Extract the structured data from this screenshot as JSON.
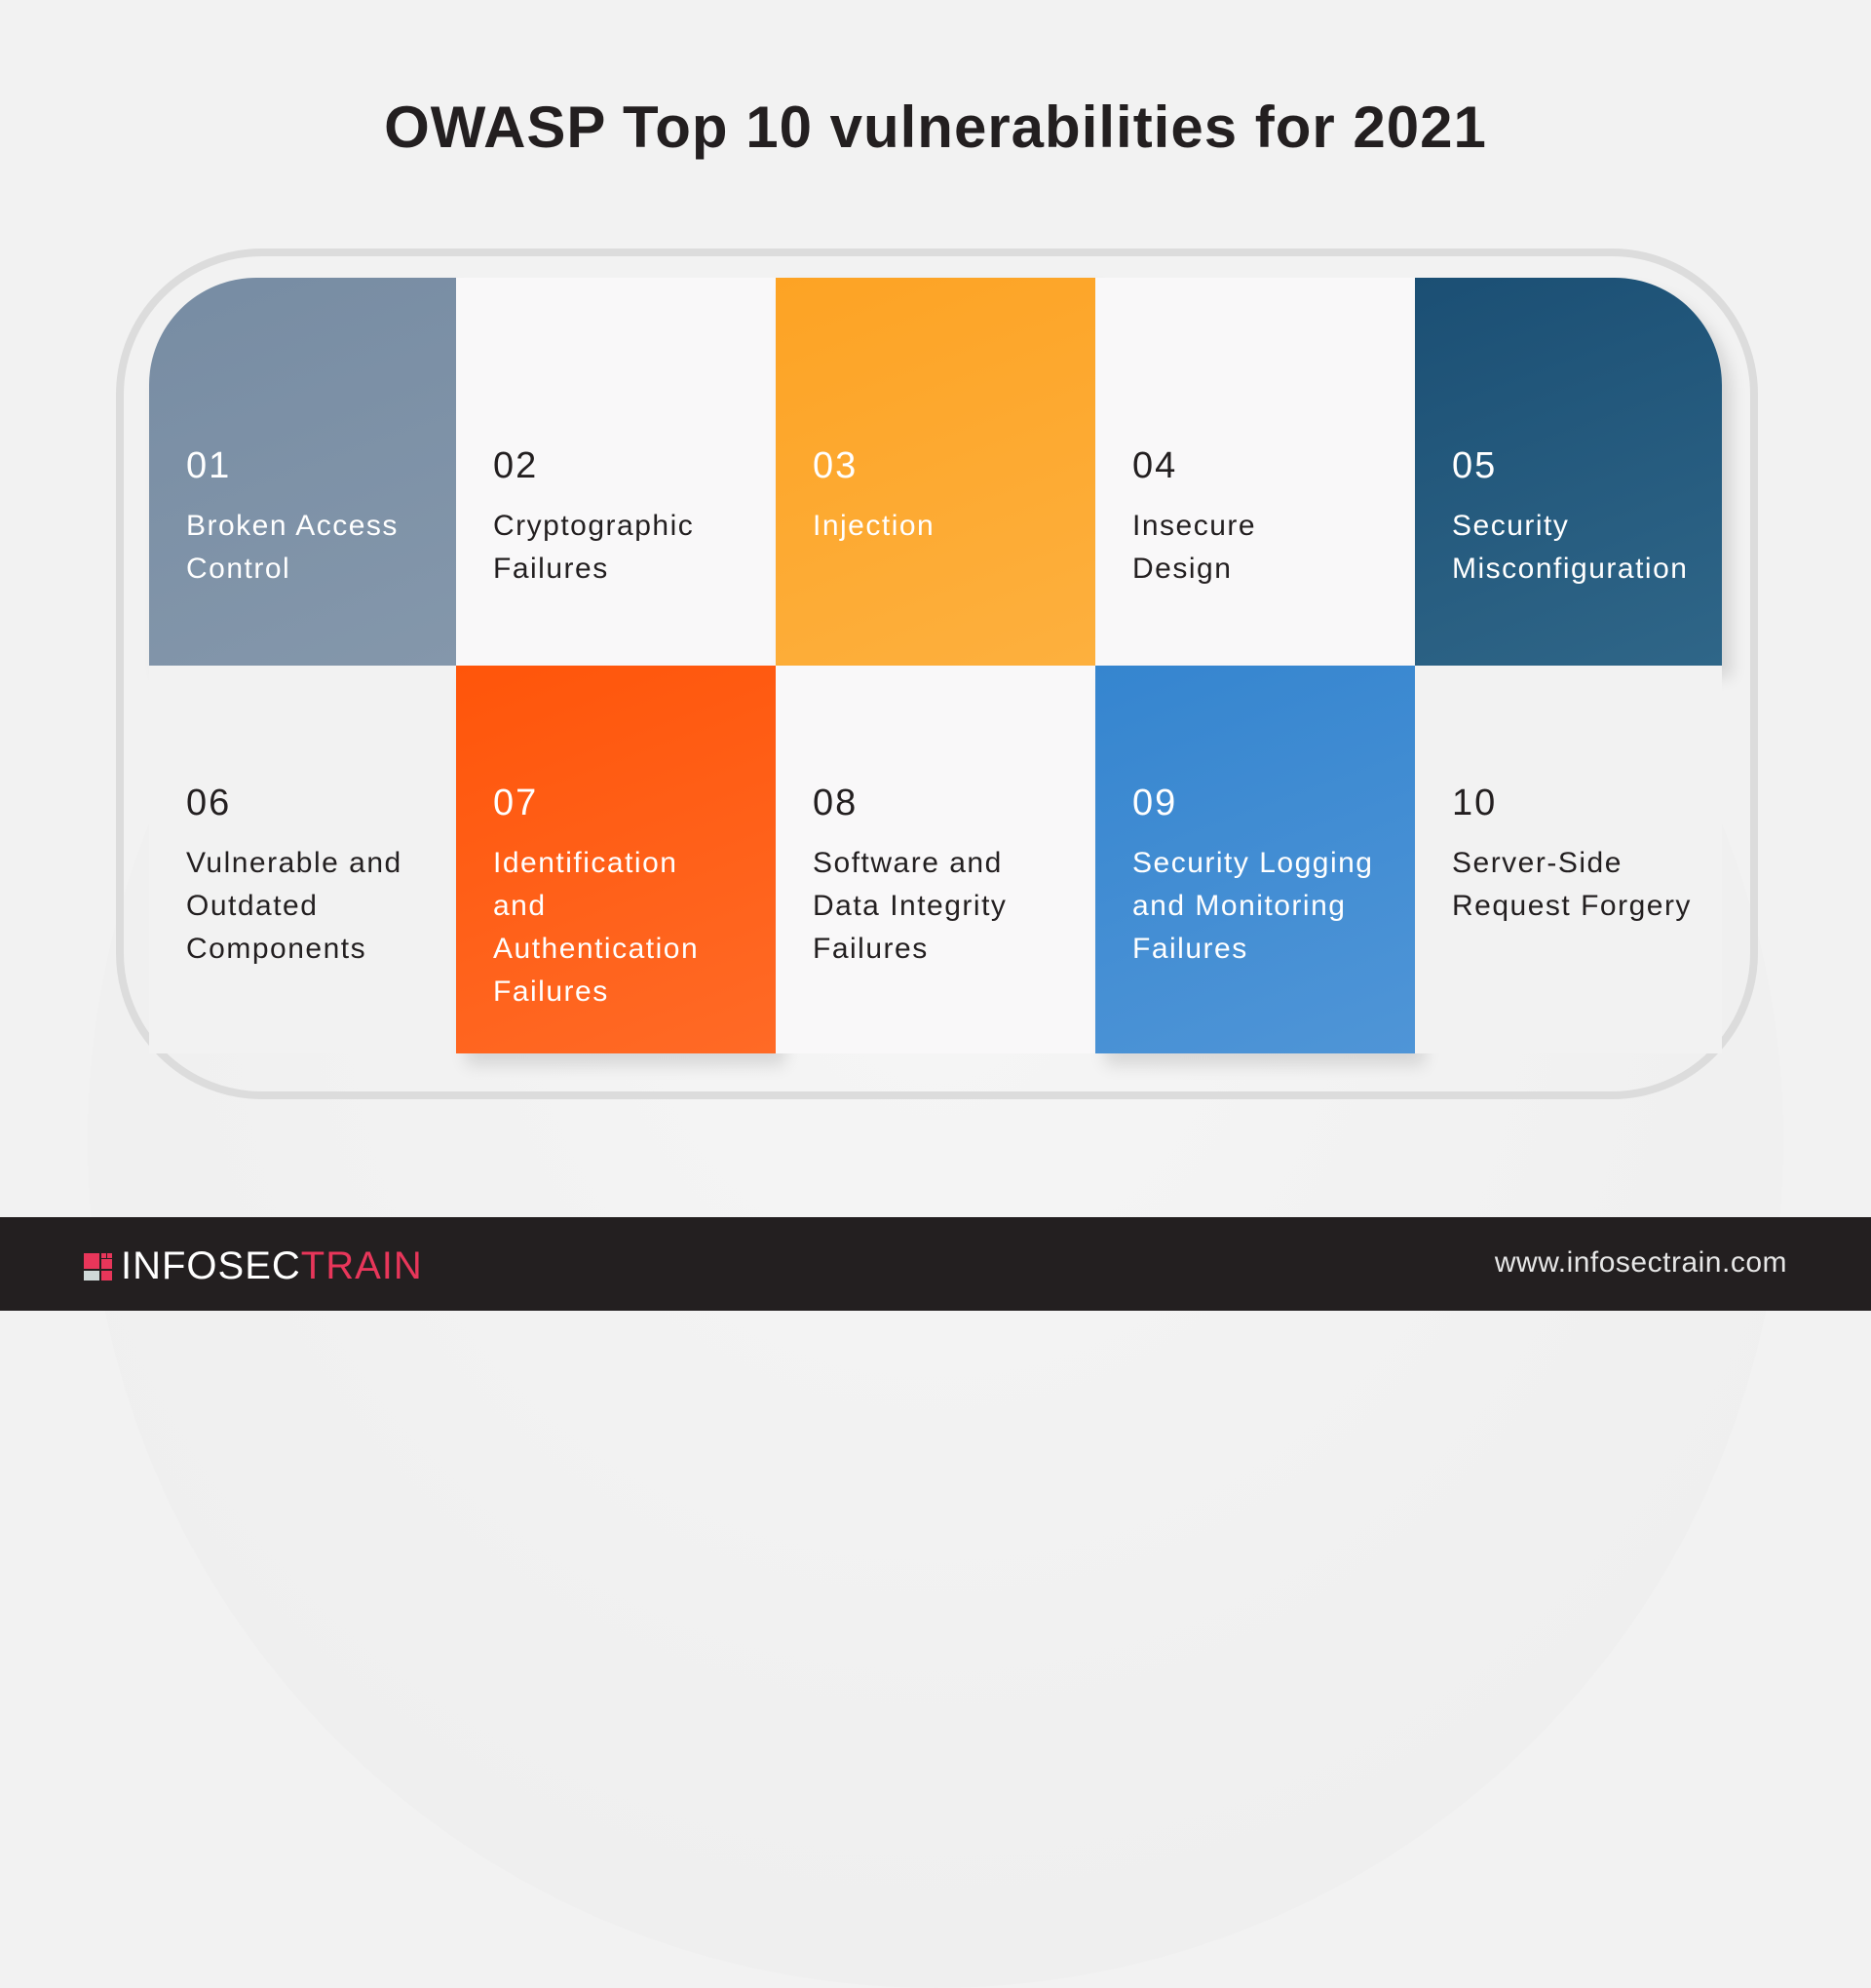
{
  "title": "OWASP Top 10 vulnerabilities for 2021",
  "items": [
    {
      "number": "01",
      "lines": [
        "Broken Access",
        "Control"
      ],
      "color": "#7a8fa5"
    },
    {
      "number": "02",
      "lines": [
        "Cryptographic",
        "Failures"
      ],
      "color": "#f9f8f9"
    },
    {
      "number": "03",
      "lines": [
        "Injection"
      ],
      "color": "#fda42b"
    },
    {
      "number": "04",
      "lines": [
        "Insecure",
        "Design"
      ],
      "color": "#f9f8f9"
    },
    {
      "number": "05",
      "lines": [
        "Security",
        "Misconfiguration"
      ],
      "color": "#205679"
    },
    {
      "number": "06",
      "lines": [
        "Vulnerable and",
        "Outdated",
        "Components"
      ],
      "color": "#f2f2f2"
    },
    {
      "number": "07",
      "lines": [
        "Identification",
        "and",
        "Authentication",
        "Failures"
      ],
      "color": "#ff5a0e"
    },
    {
      "number": "08",
      "lines": [
        "Software and",
        "Data Integrity",
        "Failures"
      ],
      "color": "#f9f8f9"
    },
    {
      "number": "09",
      "lines": [
        "Security Logging",
        "and Monitoring",
        "Failures"
      ],
      "color": "#3d89d1"
    },
    {
      "number": "10",
      "lines": [
        "Server-Side",
        "Request Forgery"
      ],
      "color": "#f2f2f2"
    }
  ],
  "footer": {
    "logo_part1": "INFOSEC",
    "logo_part2": "TRAIN",
    "url": "www.infosectrain.com"
  },
  "colors": {
    "brand_red": "#e8365a",
    "footer_bg": "#231f20"
  }
}
